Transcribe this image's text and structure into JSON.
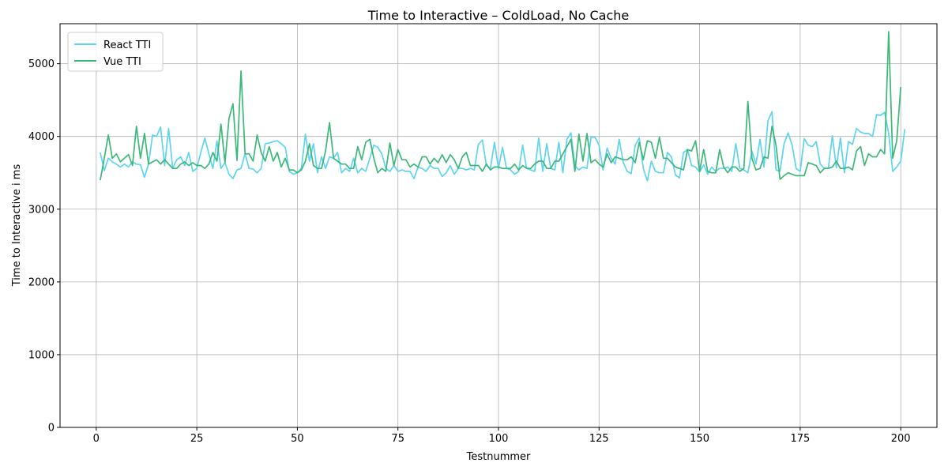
{
  "chart_data": {
    "type": "line",
    "title": "Time to Interactive  – ColdLoad, No Cache",
    "xlabel": "Testnummer",
    "ylabel": "Time to Interactive  i ms",
    "xlim": [
      -9,
      209
    ],
    "ylim": [
      0,
      5550
    ],
    "xticks": [
      0,
      25,
      50,
      75,
      100,
      125,
      150,
      175,
      200
    ],
    "yticks": [
      0,
      1000,
      2000,
      3000,
      4000,
      5000
    ],
    "grid": true,
    "legend_position": "upper-left",
    "x": {
      "start": 1,
      "end": 200
    },
    "series": [
      {
        "name": "React TTI",
        "color": "#5ed4f0",
        "values": [
          3780,
          3530,
          3700,
          3650,
          3620,
          3580,
          3620,
          3580,
          3650,
          3620,
          3610,
          3440,
          3620,
          4020,
          4000,
          4130,
          3600,
          4110,
          3560,
          3680,
          3720,
          3600,
          3780,
          3520,
          3560,
          3780,
          3980,
          3760,
          3560,
          3940,
          3560,
          3640,
          3480,
          3420,
          3540,
          3560,
          3760,
          3560,
          3550,
          3500,
          3560,
          3900,
          3910,
          3930,
          3940,
          3900,
          3850,
          3520,
          3480,
          3500,
          3560,
          4030,
          3660,
          3900,
          3500,
          3720,
          3560,
          3720,
          3700,
          3780,
          3500,
          3560,
          3520,
          3700,
          3500,
          3560,
          3520,
          3700,
          3880,
          3850,
          3760,
          3560,
          3520,
          3600,
          3520,
          3540,
          3520,
          3520,
          3420,
          3580,
          3560,
          3520,
          3600,
          3560,
          3560,
          3450,
          3500,
          3600,
          3480,
          3560,
          3560,
          3540,
          3560,
          3540,
          3890,
          3950,
          3600,
          3560,
          3920,
          3560,
          3850,
          3560,
          3540,
          3480,
          3520,
          3880,
          3560,
          3540,
          3520,
          3980,
          3520,
          3900,
          3560,
          3540,
          3920,
          3500,
          3960,
          4050,
          3600,
          3540,
          3580,
          3560,
          3990,
          3990,
          3880,
          3540,
          3840,
          3700,
          3620,
          3960,
          3650,
          3520,
          3490,
          3880,
          3980,
          3560,
          3390,
          3660,
          3520,
          3500,
          3500,
          3780,
          3720,
          3470,
          3430,
          3780,
          3820,
          3600,
          3580,
          3510,
          3610,
          3480,
          3580,
          3520,
          3560,
          3560,
          3580,
          3520,
          3900,
          3560,
          3540,
          3500,
          3800,
          3620,
          3960,
          3580,
          4220,
          4340,
          3540,
          3520,
          3900,
          4050,
          3880,
          3560,
          3520,
          3970,
          3880,
          3860,
          3930,
          3620,
          3560,
          3560,
          4010,
          3570,
          3980,
          3500,
          3930,
          3890,
          4110,
          4060,
          4040,
          4040,
          4000,
          4300,
          4290,
          4330,
          4040,
          3520,
          3580,
          3660,
          4100
        ]
      },
      {
        "name": "Vue TTI",
        "color": "#3cb878",
        "values": [
          3400,
          3700,
          4020,
          3700,
          3760,
          3650,
          3700,
          3750,
          3600,
          4140,
          3700,
          4040,
          3620,
          3650,
          3680,
          3620,
          3680,
          3620,
          3560,
          3560,
          3620,
          3650,
          3600,
          3640,
          3600,
          3600,
          3560,
          3620,
          3780,
          3660,
          4170,
          3640,
          4250,
          4450,
          3670,
          4900,
          3760,
          3760,
          3660,
          4020,
          3780,
          3660,
          3860,
          3660,
          3780,
          3580,
          3700,
          3540,
          3540,
          3500,
          3540,
          3660,
          3900,
          3600,
          3560,
          3560,
          3800,
          4190,
          3700,
          3660,
          3620,
          3620,
          3560,
          3560,
          3860,
          3680,
          3920,
          3960,
          3700,
          3500,
          3560,
          3520,
          3910,
          3600,
          3820,
          3680,
          3680,
          3580,
          3620,
          3580,
          3720,
          3720,
          3620,
          3700,
          3640,
          3750,
          3640,
          3750,
          3680,
          3560,
          3720,
          3780,
          3600,
          3600,
          3600,
          3520,
          3620,
          3540,
          3580,
          3580,
          3560,
          3560,
          3560,
          3620,
          3540,
          3600,
          3560,
          3560,
          3620,
          3660,
          3660,
          3560,
          3560,
          3660,
          3660,
          3760,
          3860,
          3960,
          3520,
          4030,
          3660,
          4040,
          3640,
          3680,
          3620,
          3580,
          3760,
          3640,
          3720,
          3700,
          3680,
          3680,
          3720,
          3640,
          3920,
          3680,
          3940,
          3920,
          3700,
          3990,
          3700,
          3700,
          3640,
          3580,
          3560,
          3540,
          3820,
          3800,
          3940,
          3520,
          3820,
          3520,
          3500,
          3500,
          3820,
          3580,
          3500,
          3580,
          3580,
          3520,
          3560,
          4480,
          3700,
          3540,
          3560,
          3720,
          3700,
          4140,
          3880,
          3410,
          3460,
          3500,
          3480,
          3460,
          3460,
          3460,
          3640,
          3620,
          3600,
          3500,
          3560,
          3560,
          3580,
          3660,
          3560,
          3560,
          3580,
          3540,
          3800,
          3860,
          3600,
          3760,
          3720,
          3720,
          3820,
          3760,
          5440,
          3700,
          3940,
          4680
        ]
      }
    ]
  }
}
